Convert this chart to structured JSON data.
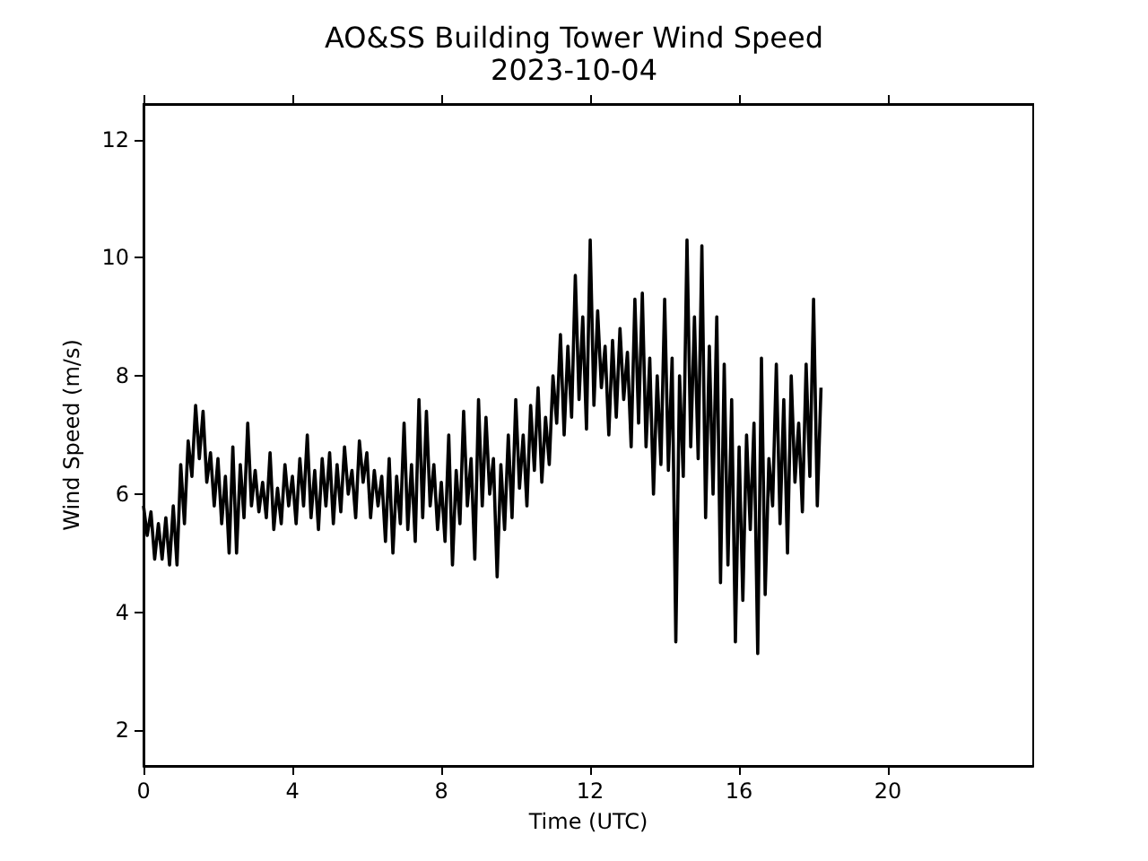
{
  "chart_data": {
    "type": "line",
    "title": "AO&SS Building Tower Wind Speed",
    "subtitle": "2023-10-04",
    "xlabel": "Time (UTC)",
    "ylabel": "Wind Speed (m/s)",
    "xlim": [
      0,
      23.9
    ],
    "xticks": [
      0,
      4,
      8,
      12,
      16,
      20
    ],
    "ylim": [
      1.4,
      12.6
    ],
    "yticks": [
      2,
      4,
      6,
      8,
      10,
      12
    ],
    "grid": false,
    "marker": "none",
    "line_style": "solid",
    "series": [
      {
        "color": "#000000",
        "x": [
          0.0,
          0.1,
          0.2,
          0.3,
          0.4,
          0.5,
          0.6,
          0.7,
          0.8,
          0.9,
          1.0,
          1.1,
          1.2,
          1.3,
          1.4,
          1.5,
          1.6,
          1.7,
          1.8,
          1.9,
          2.0,
          2.1,
          2.2,
          2.3,
          2.4,
          2.5,
          2.6,
          2.7,
          2.8,
          2.9,
          3.0,
          3.1,
          3.2,
          3.3,
          3.4,
          3.5,
          3.6,
          3.7,
          3.8,
          3.9,
          4.0,
          4.1,
          4.2,
          4.3,
          4.4,
          4.5,
          4.6,
          4.7,
          4.8,
          4.9,
          5.0,
          5.1,
          5.2,
          5.3,
          5.4,
          5.5,
          5.6,
          5.7,
          5.8,
          5.9,
          6.0,
          6.1,
          6.2,
          6.3,
          6.4,
          6.5,
          6.6,
          6.7,
          6.8,
          6.9,
          7.0,
          7.1,
          7.2,
          7.3,
          7.4,
          7.5,
          7.6,
          7.7,
          7.8,
          7.9,
          8.0,
          8.1,
          8.2,
          8.3,
          8.4,
          8.5,
          8.6,
          8.7,
          8.8,
          8.9,
          9.0,
          9.1,
          9.2,
          9.3,
          9.4,
          9.5,
          9.6,
          9.7,
          9.8,
          9.9,
          10.0,
          10.1,
          10.2,
          10.3,
          10.4,
          10.5,
          10.6,
          10.7,
          10.8,
          10.9,
          11.0,
          11.1,
          11.2,
          11.3,
          11.4,
          11.5,
          11.6,
          11.7,
          11.8,
          11.9,
          12.0,
          12.1,
          12.2,
          12.3,
          12.4,
          12.5,
          12.6,
          12.7,
          12.8,
          12.9,
          13.0,
          13.1,
          13.2,
          13.3,
          13.4,
          13.5,
          13.6,
          13.7,
          13.8,
          13.9,
          14.0,
          14.1,
          14.2,
          14.3,
          14.4,
          14.5,
          14.6,
          14.7,
          14.8,
          14.9,
          15.0,
          15.1,
          15.2,
          15.3,
          15.4,
          15.5,
          15.6,
          15.7,
          15.8,
          15.9,
          16.0,
          16.1,
          16.2,
          16.3,
          16.4,
          16.5,
          16.6,
          16.7,
          16.8,
          16.9,
          17.0,
          17.1,
          17.2,
          17.3,
          17.4,
          17.5,
          17.6,
          17.7,
          17.8,
          17.9,
          18.0,
          18.1,
          18.2
        ],
        "values": [
          5.8,
          5.3,
          5.7,
          4.9,
          5.5,
          4.9,
          5.6,
          4.8,
          5.8,
          4.8,
          6.5,
          5.5,
          6.9,
          6.3,
          7.5,
          6.6,
          7.4,
          6.2,
          6.7,
          5.8,
          6.6,
          5.5,
          6.3,
          5.0,
          6.8,
          5.0,
          6.5,
          5.6,
          7.2,
          5.8,
          6.4,
          5.7,
          6.2,
          5.6,
          6.7,
          5.4,
          6.1,
          5.5,
          6.5,
          5.8,
          6.3,
          5.5,
          6.6,
          5.8,
          7.0,
          5.6,
          6.4,
          5.4,
          6.6,
          5.8,
          6.7,
          5.5,
          6.5,
          5.7,
          6.8,
          6.0,
          6.4,
          5.6,
          6.9,
          6.2,
          6.7,
          5.6,
          6.4,
          5.8,
          6.3,
          5.2,
          6.6,
          5.0,
          6.3,
          5.5,
          7.2,
          5.4,
          6.5,
          5.2,
          7.6,
          5.6,
          7.4,
          5.8,
          6.5,
          5.4,
          6.2,
          5.2,
          7.0,
          4.8,
          6.4,
          5.5,
          7.4,
          5.8,
          6.6,
          4.9,
          7.6,
          5.8,
          7.3,
          6.0,
          6.6,
          4.6,
          6.5,
          5.4,
          7.0,
          5.6,
          7.6,
          6.1,
          7.0,
          5.8,
          7.5,
          6.4,
          7.8,
          6.2,
          7.3,
          6.5,
          8.0,
          7.2,
          8.7,
          7.0,
          8.5,
          7.3,
          9.7,
          7.6,
          9.0,
          7.1,
          10.3,
          7.5,
          9.1,
          7.8,
          8.5,
          7.0,
          8.6,
          7.3,
          8.8,
          7.6,
          8.4,
          6.8,
          9.3,
          7.2,
          9.4,
          6.8,
          8.3,
          6.0,
          8.0,
          6.5,
          9.3,
          6.4,
          8.3,
          3.5,
          8.0,
          6.3,
          10.3,
          6.8,
          9.0,
          6.6,
          10.2,
          5.6,
          8.5,
          6.0,
          9.0,
          4.5,
          8.2,
          4.8,
          7.6,
          3.5,
          6.8,
          4.2,
          7.0,
          5.4,
          7.2,
          3.3,
          8.3,
          4.3,
          6.6,
          5.8,
          8.2,
          5.5,
          7.6,
          5.0,
          8.0,
          6.2,
          7.2,
          5.7,
          8.2,
          6.3,
          9.3,
          5.8,
          7.8
        ]
      }
    ]
  }
}
